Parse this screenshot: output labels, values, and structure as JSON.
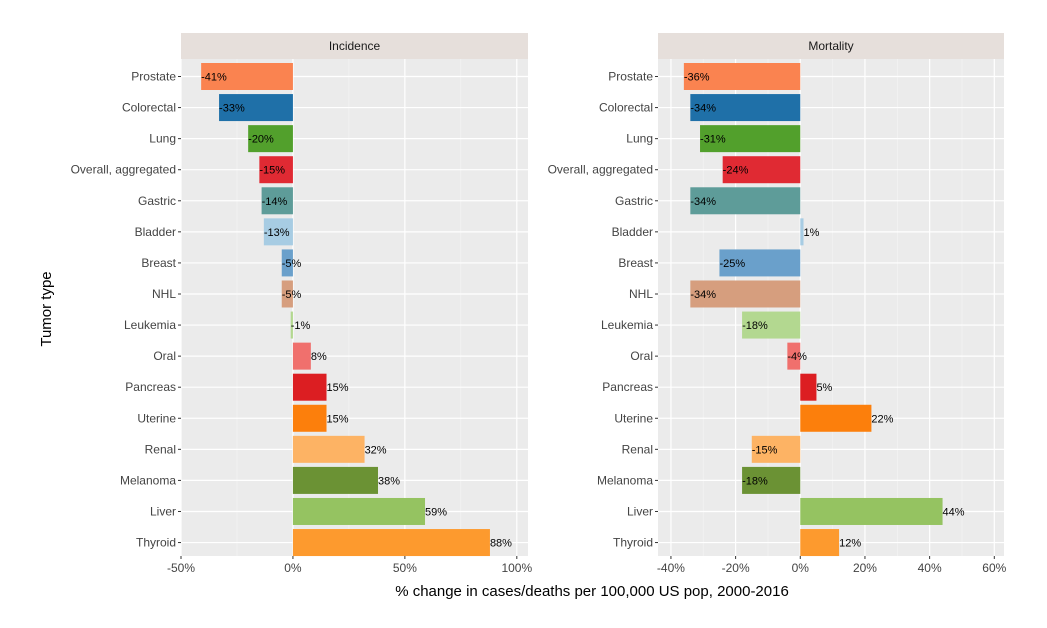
{
  "chart_data": {
    "type": "bar",
    "orientation": "horizontal",
    "title": "",
    "xlabel": "% change in cases/deaths per 100,000 US pop, 2000-2016",
    "ylabel": "Tumor type",
    "grid": true,
    "legend": "none",
    "categories": [
      "Prostate",
      "Colorectal",
      "Lung",
      "Overall, aggregated",
      "Gastric",
      "Bladder",
      "Breast",
      "NHL",
      "Leukemia",
      "Oral",
      "Pancreas",
      "Uterine",
      "Renal",
      "Melanoma",
      "Liver",
      "Thyroid"
    ],
    "colors": [
      "#FA8350",
      "#1F70A8",
      "#52A02C",
      "#E02A33",
      "#5E9C99",
      "#A7CCE3",
      "#6AA0CB",
      "#D69E7E",
      "#B3D890",
      "#F0706D",
      "#DC1E22",
      "#FC7F0C",
      "#FDB364",
      "#6B9234",
      "#95C361",
      "#FD9A2E"
    ],
    "panels": [
      {
        "strip": "Incidence",
        "values": [
          -41,
          -33,
          -20,
          -15,
          -14,
          -13,
          -5,
          -5,
          -1,
          8,
          15,
          15,
          32,
          38,
          59,
          88
        ],
        "labels": [
          "-41%",
          "-33%",
          "-20%",
          "-15%",
          "-14%",
          "-13%",
          "-5%",
          "-5%",
          "-1%",
          "8%",
          "15%",
          "15%",
          "32%",
          "38%",
          "59%",
          "88%"
        ],
        "xlim": [
          -50,
          105
        ],
        "xticks": [
          -50,
          0,
          50,
          100
        ],
        "xtick_labels": [
          "-50%",
          "0%",
          "50%",
          "100%"
        ]
      },
      {
        "strip": "Mortality",
        "values": [
          -36,
          -34,
          -31,
          -24,
          -34,
          1,
          -25,
          -34,
          -18,
          -4,
          5,
          22,
          -15,
          -18,
          44,
          12
        ],
        "labels": [
          "-36%",
          "-34%",
          "-31%",
          "-24%",
          "-34%",
          "1%",
          "-25%",
          "-34%",
          "-18%",
          "-4%",
          "5%",
          "22%",
          "-15%",
          "-18%",
          "44%",
          "12%"
        ],
        "xlim": [
          -44,
          63
        ],
        "xticks": [
          -40,
          -20,
          0,
          20,
          40,
          60
        ],
        "xtick_labels": [
          "-40%",
          "-20%",
          "0%",
          "20%",
          "40%",
          "60%"
        ]
      }
    ]
  }
}
